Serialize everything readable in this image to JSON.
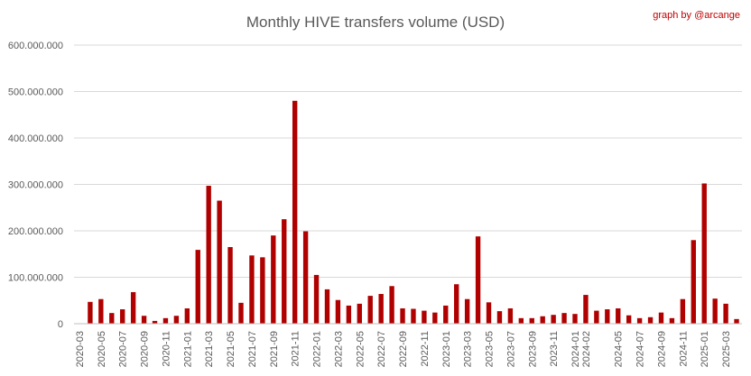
{
  "chart_data": {
    "type": "bar",
    "title": "Monthly HIVE transfers volume (USD)",
    "credit": "graph by @arcange",
    "xlabel": "",
    "ylabel": "",
    "ylim": [
      0,
      600000000
    ],
    "yticks": [
      {
        "value": 0,
        "label": "0"
      },
      {
        "value": 100000000,
        "label": "100.000.000"
      },
      {
        "value": 200000000,
        "label": "200.000.000"
      },
      {
        "value": 300000000,
        "label": "300.000.000"
      },
      {
        "value": 400000000,
        "label": "400.000.000"
      },
      {
        "value": 500000000,
        "label": "500.000.000"
      },
      {
        "value": 600000000,
        "label": "600.000.000"
      }
    ],
    "grid": true,
    "legend": "none",
    "bar_color": "#b00000",
    "categories": [
      "2020-03",
      "2020-04",
      "2020-05",
      "2020-06",
      "2020-07",
      "2020-08",
      "2020-09",
      "2020-10",
      "2020-11",
      "2020-12",
      "2021-01",
      "2021-02",
      "2021-03",
      "2021-04",
      "2021-05",
      "2021-06",
      "2021-07",
      "2021-08",
      "2021-09",
      "2021-10",
      "2021-11",
      "2021-12",
      "2022-01",
      "2022-02",
      "2022-03",
      "2022-04",
      "2022-05",
      "2022-06",
      "2022-07",
      "2022-08",
      "2022-09",
      "2022-10",
      "2022-11",
      "2022-12",
      "2023-01",
      "2023-02",
      "2023-03",
      "2023-04",
      "2023-05",
      "2023-06",
      "2023-07",
      "2023-08",
      "2023-09",
      "2023-10",
      "2023-11",
      "2023-12",
      "2024-01",
      "2024-02",
      "2024-03",
      "2024-04",
      "2024-05",
      "2024-06",
      "2024-07",
      "2024-08",
      "2024-09",
      "2024-10",
      "2024-11",
      "2024-12",
      "2025-01",
      "2025-02",
      "2025-03",
      "2025-04"
    ],
    "tick_labels": [
      "2020-03",
      "2020-05",
      "2020-07",
      "2020-09",
      "2020-11",
      "2021-01",
      "2021-03",
      "2021-05",
      "2021-07",
      "2021-09",
      "2021-11",
      "2022-01",
      "2022-03",
      "2022-05",
      "2022-07",
      "2022-09",
      "2022-11",
      "2023-01",
      "2023-03",
      "2023-05",
      "2023-07",
      "2023-09",
      "2023-11",
      "2024-01",
      "2024-02",
      "2024-05",
      "2024-07",
      "2024-09",
      "2024-11",
      "2025-01",
      "2025-03"
    ],
    "values": [
      0,
      47000000,
      53000000,
      23000000,
      31000000,
      68000000,
      17000000,
      6000000,
      12000000,
      17000000,
      33000000,
      159000000,
      297000000,
      265000000,
      165000000,
      45000000,
      147000000,
      143000000,
      190000000,
      225000000,
      480000000,
      199000000,
      105000000,
      74000000,
      51000000,
      39000000,
      43000000,
      60000000,
      64000000,
      81000000,
      33000000,
      32000000,
      28000000,
      24000000,
      39000000,
      85000000,
      53000000,
      188000000,
      46000000,
      27000000,
      33000000,
      12000000,
      12000000,
      16000000,
      19000000,
      23000000,
      21000000,
      62000000,
      28000000,
      31000000,
      33000000,
      18000000,
      12000000,
      14000000,
      24000000,
      12000000,
      53000000,
      180000000,
      302000000,
      54000000,
      43000000,
      10000000
    ]
  }
}
